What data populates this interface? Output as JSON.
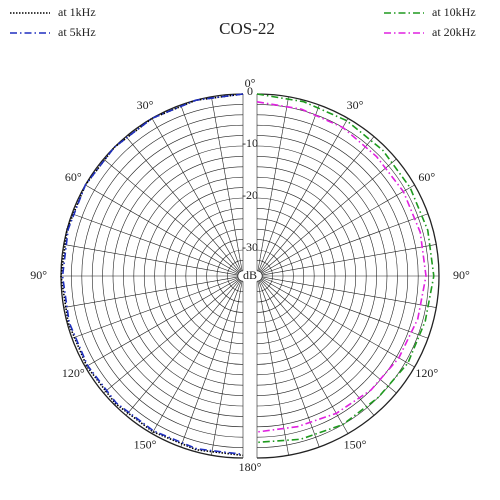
{
  "chart_data": {
    "type": "polar",
    "title": "COS-22",
    "r_label": "dB",
    "x": [
      0,
      15,
      30,
      45,
      60,
      75,
      90,
      105,
      120,
      135,
      150,
      165,
      180
    ],
    "series": [
      {
        "name": "at 1kHz",
        "color": "#000000",
        "linestyle": "dotted",
        "side": "left",
        "values": [
          0,
          0,
          0,
          0,
          0,
          0,
          0,
          -0.2,
          -0.3,
          -0.3,
          -0.4,
          -0.4,
          -0.5
        ]
      },
      {
        "name": "at 5kHz",
        "color": "#1f2fbf",
        "linestyle": "dashdot",
        "side": "left",
        "values": [
          0,
          0,
          0,
          0,
          0,
          -0.2,
          -0.3,
          -0.4,
          -0.5,
          -0.5,
          -0.6,
          -0.6,
          -0.7
        ]
      },
      {
        "name": "at 10kHz",
        "color": "#1e9a1e",
        "linestyle": "dashdot",
        "side": "right",
        "values": [
          0,
          -0.3,
          -0.5,
          -0.8,
          -1,
          -1,
          -1,
          -1.5,
          -1.5,
          -2,
          -2,
          -2.5,
          -3
        ]
      },
      {
        "name": "at 20kHz",
        "color": "#e020e0",
        "linestyle": "dashdot",
        "side": "right",
        "values": [
          -1.5,
          -1.8,
          -2,
          -2.5,
          -2.5,
          -2.5,
          -2.5,
          -3,
          -3.5,
          -4,
          -4.5,
          -5,
          -5
        ]
      }
    ],
    "rlim": [
      -35,
      0
    ],
    "rticks": [
      0,
      -10,
      -20,
      -30
    ],
    "minor_r_step": 2,
    "xlim": [
      0,
      180
    ],
    "xticks": [
      {
        "value": 0,
        "label": "0°"
      },
      {
        "value": 30,
        "label": "30°"
      },
      {
        "value": 60,
        "label": "60°"
      },
      {
        "value": 90,
        "label": "90°"
      },
      {
        "value": 120,
        "label": "120°"
      },
      {
        "value": 150,
        "label": "150°"
      },
      {
        "value": 180,
        "label": "180°"
      }
    ],
    "minor_x_step": 10,
    "grid": true
  }
}
